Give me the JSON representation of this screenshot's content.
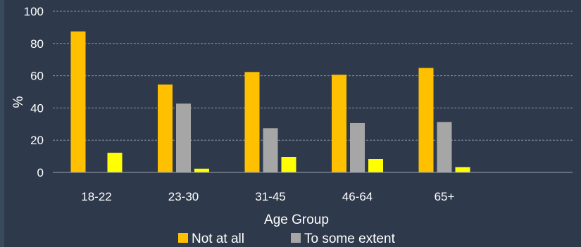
{
  "chart_data": {
    "type": "bar",
    "categories": [
      "18-22",
      "23-30",
      "31-45",
      "46-64",
      "65+"
    ],
    "series": [
      {
        "name": "Not at all",
        "values": [
          87.5,
          54.5,
          62.3,
          60.6,
          64.8
        ],
        "color": "#ffc000"
      },
      {
        "name": "To some extent",
        "values": [
          0,
          42.7,
          27.4,
          30.6,
          31.3
        ],
        "color": "#a6a6a6"
      },
      {
        "name": "",
        "values": [
          12.2,
          2.3,
          9.6,
          8.3,
          3.3
        ],
        "color": "#ffff00"
      }
    ],
    "xlabel": "Age Group",
    "ylabel": "%",
    "ylim": [
      0,
      100
    ],
    "yticks": [
      0,
      20,
      40,
      60,
      80,
      100
    ],
    "grid": true,
    "legend_position": "bottom"
  }
}
